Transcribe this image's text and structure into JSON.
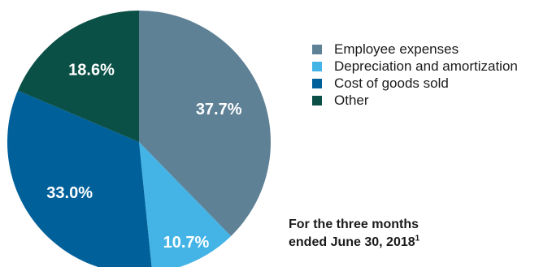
{
  "chart_data": {
    "type": "pie",
    "categories": [
      "Employee expenses",
      "Depreciation and amortization",
      "Cost of goods sold",
      "Other"
    ],
    "values": [
      37.7,
      10.7,
      33.0,
      18.6
    ],
    "value_labels": [
      "37.7%",
      "10.7%",
      "33.0%",
      "18.6%"
    ],
    "colors": [
      "#5f8196",
      "#44b4e6",
      "#00609a",
      "#0a5046"
    ],
    "legend": "right",
    "start_angle": "12 o'clock",
    "direction": "clockwise"
  },
  "legend_items": [
    {
      "label": "Employee expenses",
      "color": "#5f8196"
    },
    {
      "label": "Depreciation and amortization",
      "color": "#44b4e6"
    },
    {
      "label": "Cost of goods sold",
      "color": "#00609a"
    },
    {
      "label": "Other",
      "color": "#0a5046"
    }
  ],
  "caption": {
    "line1": "For the three months",
    "line2": "ended June 30, 2018",
    "footnote": "1"
  }
}
